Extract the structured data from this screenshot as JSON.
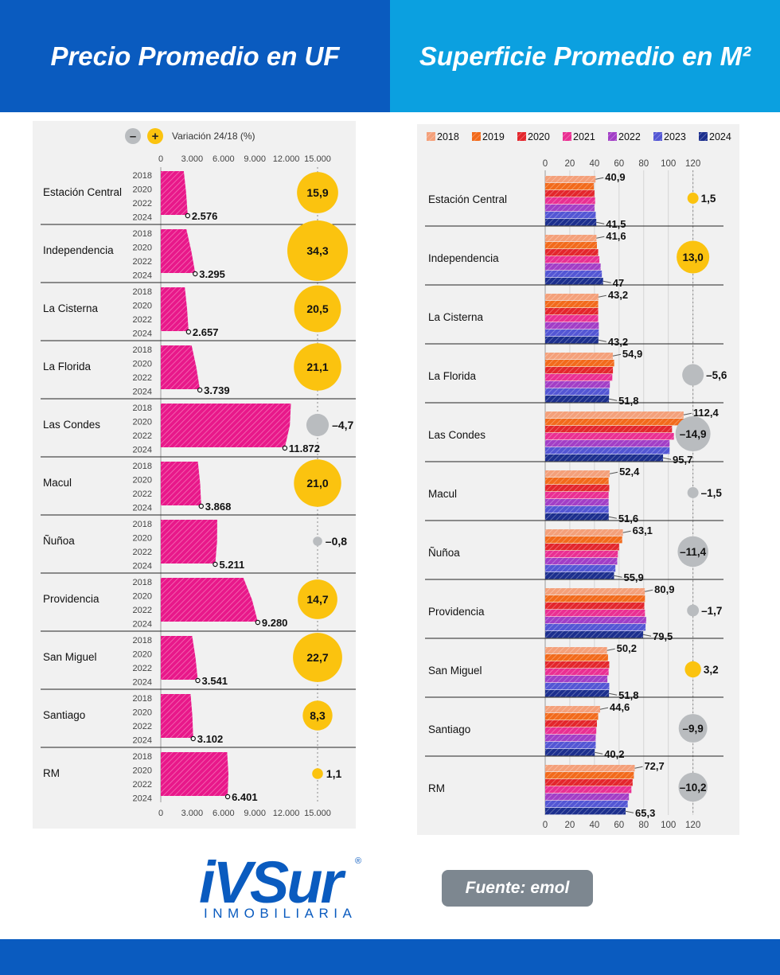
{
  "header": {
    "left_title": "Precio Promedio en UF",
    "right_title": "Superficie Promedio en M²"
  },
  "footer": {
    "logo_text": "iVSur",
    "logo_subtitle": "INMOBILIARIA",
    "registered_mark": "®",
    "source": "Fuente: emol"
  },
  "chart_data": [
    {
      "type": "bar",
      "title": "Precio Promedio en UF",
      "legend": {
        "minus_symbol": "–",
        "plus_symbol": "+",
        "label": "Variación 24/18 (%)"
      },
      "x_ticks": [
        "0",
        "3.000",
        "6.000",
        "9.000",
        "12.000",
        "15.000"
      ],
      "xlim": [
        0,
        15000
      ],
      "year_labels": [
        "2018",
        "2020",
        "2022",
        "2024"
      ],
      "categories": [
        "Estación Central",
        "Independencia",
        "La Cisterna",
        "La Florida",
        "Las Condes",
        "Macul",
        "Ñuñoa",
        "Providencia",
        "San Miguel",
        "Santiago",
        "RM"
      ],
      "series": [
        {
          "values": [
            2200,
            2450,
            2300,
            2950,
            12450,
            3550,
            5400,
            7900,
            3000,
            2850,
            6350
          ]
        },
        {
          "values": [
            2576,
            3295,
            2657,
            3739,
            11872,
            3868,
            5211,
            9280,
            3541,
            3102,
            6401
          ]
        }
      ],
      "value_labels": [
        "2.576",
        "3.295",
        "2.657",
        "3.739",
        "11.872",
        "3.868",
        "5.211",
        "9.280",
        "3.541",
        "3.102",
        "6.401"
      ],
      "variation": [
        15.9,
        34.3,
        20.5,
        21.1,
        -4.7,
        21.0,
        -0.8,
        14.7,
        22.7,
        8.3,
        1.1
      ],
      "variation_labels": [
        "15,9",
        "34,3",
        "20,5",
        "21,1",
        "–4,7",
        "21,0",
        "–0,8",
        "14,7",
        "22,7",
        "8,3",
        "1,1"
      ],
      "colors": {
        "bar": "#e8188a",
        "positive": "#fbc30f",
        "negative": "#b9bcbf"
      }
    },
    {
      "type": "bar",
      "title": "Superficie Promedio en M²",
      "x_ticks": [
        "0",
        "20",
        "40",
        "60",
        "80",
        "100",
        "120"
      ],
      "xlim": [
        0,
        125
      ],
      "categories": [
        "Estación Central",
        "Independencia",
        "La Cisterna",
        "La Florida",
        "Las Condes",
        "Macul",
        "Ñuñoa",
        "Providencia",
        "San Miguel",
        "Santiago",
        "RM"
      ],
      "series": [
        {
          "name": "2018",
          "color": "#f4a07a",
          "values": [
            40.9,
            41.6,
            43.2,
            54.9,
            112.4,
            52.4,
            63.1,
            80.9,
            50.2,
            44.6,
            72.7
          ]
        },
        {
          "name": "2019",
          "color": "#f26a1b",
          "values": [
            39.5,
            42,
            43,
            56,
            113,
            51.5,
            62.5,
            81,
            51,
            43,
            72
          ]
        },
        {
          "name": "2020",
          "color": "#e3262c",
          "values": [
            40,
            43,
            43,
            55,
            103,
            52,
            60,
            80.5,
            52,
            42,
            71
          ]
        },
        {
          "name": "2021",
          "color": "#ea2f92",
          "values": [
            40.5,
            44,
            43,
            54.5,
            104.5,
            51.5,
            59,
            81,
            51.5,
            41.5,
            70
          ]
        },
        {
          "name": "2022",
          "color": "#a23ec6",
          "values": [
            40,
            45,
            43.5,
            52.5,
            101,
            51.5,
            58.5,
            82,
            50.5,
            41,
            68
          ]
        },
        {
          "name": "2023",
          "color": "#5356d4",
          "values": [
            41,
            46,
            43.5,
            52,
            101,
            51.5,
            57,
            81.5,
            52,
            41,
            67
          ]
        },
        {
          "name": "2024",
          "color": "#1c2f8e",
          "values": [
            41.5,
            47,
            43.2,
            51.8,
            95.7,
            51.6,
            55.9,
            79.5,
            51.8,
            40.2,
            65.3
          ]
        }
      ],
      "label_2018": [
        "40,9",
        "41,6",
        "43,2",
        "54,9",
        "112,4",
        "52,4",
        "63,1",
        "80,9",
        "50,2",
        "44,6",
        "72,7"
      ],
      "label_2024": [
        "41,5",
        "47",
        "43,2",
        "51,8",
        "95,7",
        "51,6",
        "55,9",
        "79,5",
        "51,8",
        "40,2",
        "65,3"
      ],
      "variation": [
        1.5,
        13.0,
        0,
        -5.6,
        -14.9,
        -1.5,
        -11.4,
        -1.7,
        3.2,
        -9.9,
        -10.2
      ],
      "variation_labels": [
        "1,5",
        "13,0",
        "",
        "–5,6",
        "–14,9",
        "–1,5",
        "–11,4",
        "–1,7",
        "3,2",
        "–9,9",
        "–10,2"
      ],
      "colors": {
        "positive": "#fbc30f",
        "negative": "#b9bcbf"
      }
    }
  ]
}
